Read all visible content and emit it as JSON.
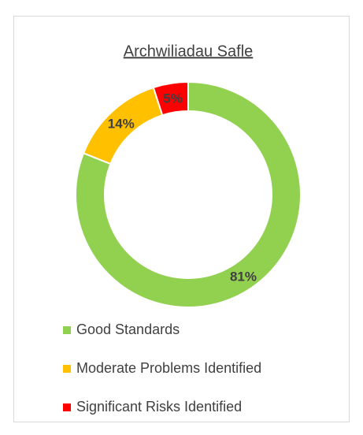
{
  "chart_data": {
    "type": "donut",
    "title": "Archwiliadau Safle",
    "categories": [
      "Good Standards",
      "Moderate Problems Identified",
      "Significant Risks Identified"
    ],
    "values": [
      81,
      14,
      5
    ],
    "value_labels": [
      "81%",
      "14%",
      "5%"
    ],
    "colors": [
      "#92d050",
      "#ffc000",
      "#ff0000"
    ]
  }
}
